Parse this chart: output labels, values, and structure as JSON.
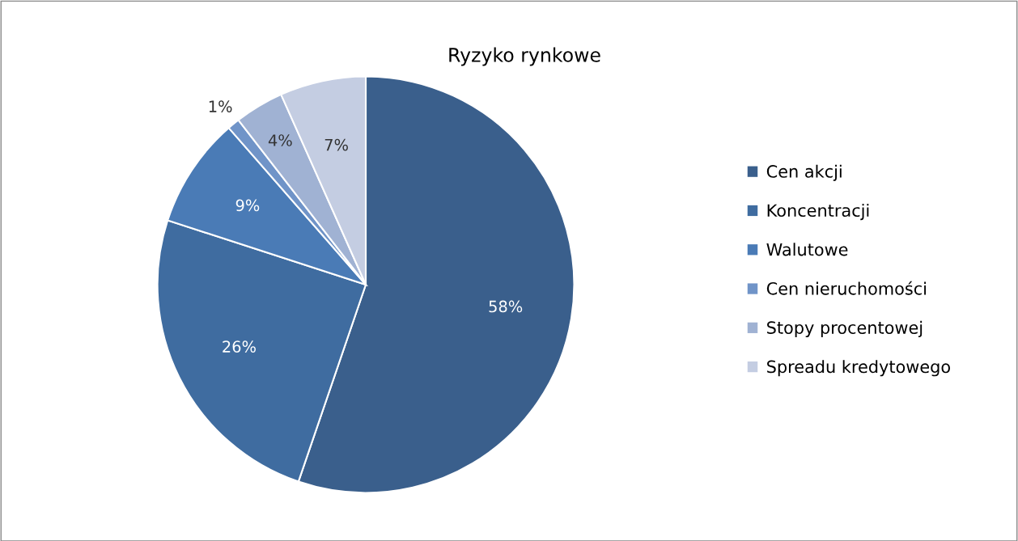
{
  "chart_data": {
    "type": "pie",
    "title": "Ryzyko rynkowe",
    "categories": [
      "Cen akcji",
      "Koncentracji",
      "Walutowe",
      "Cen nieruchomości",
      "Stopy procentowej",
      "Spreadu kredytowego"
    ],
    "values": [
      58,
      26,
      9,
      1,
      4,
      7
    ],
    "value_labels": [
      "58%",
      "26%",
      "9%",
      "1%",
      "4%",
      "7%"
    ],
    "colors": [
      "#3a5f8c",
      "#3f6ca0",
      "#4a7bb6",
      "#7094c8",
      "#a0b2d3",
      "#c4cde2"
    ],
    "legend": "right"
  }
}
